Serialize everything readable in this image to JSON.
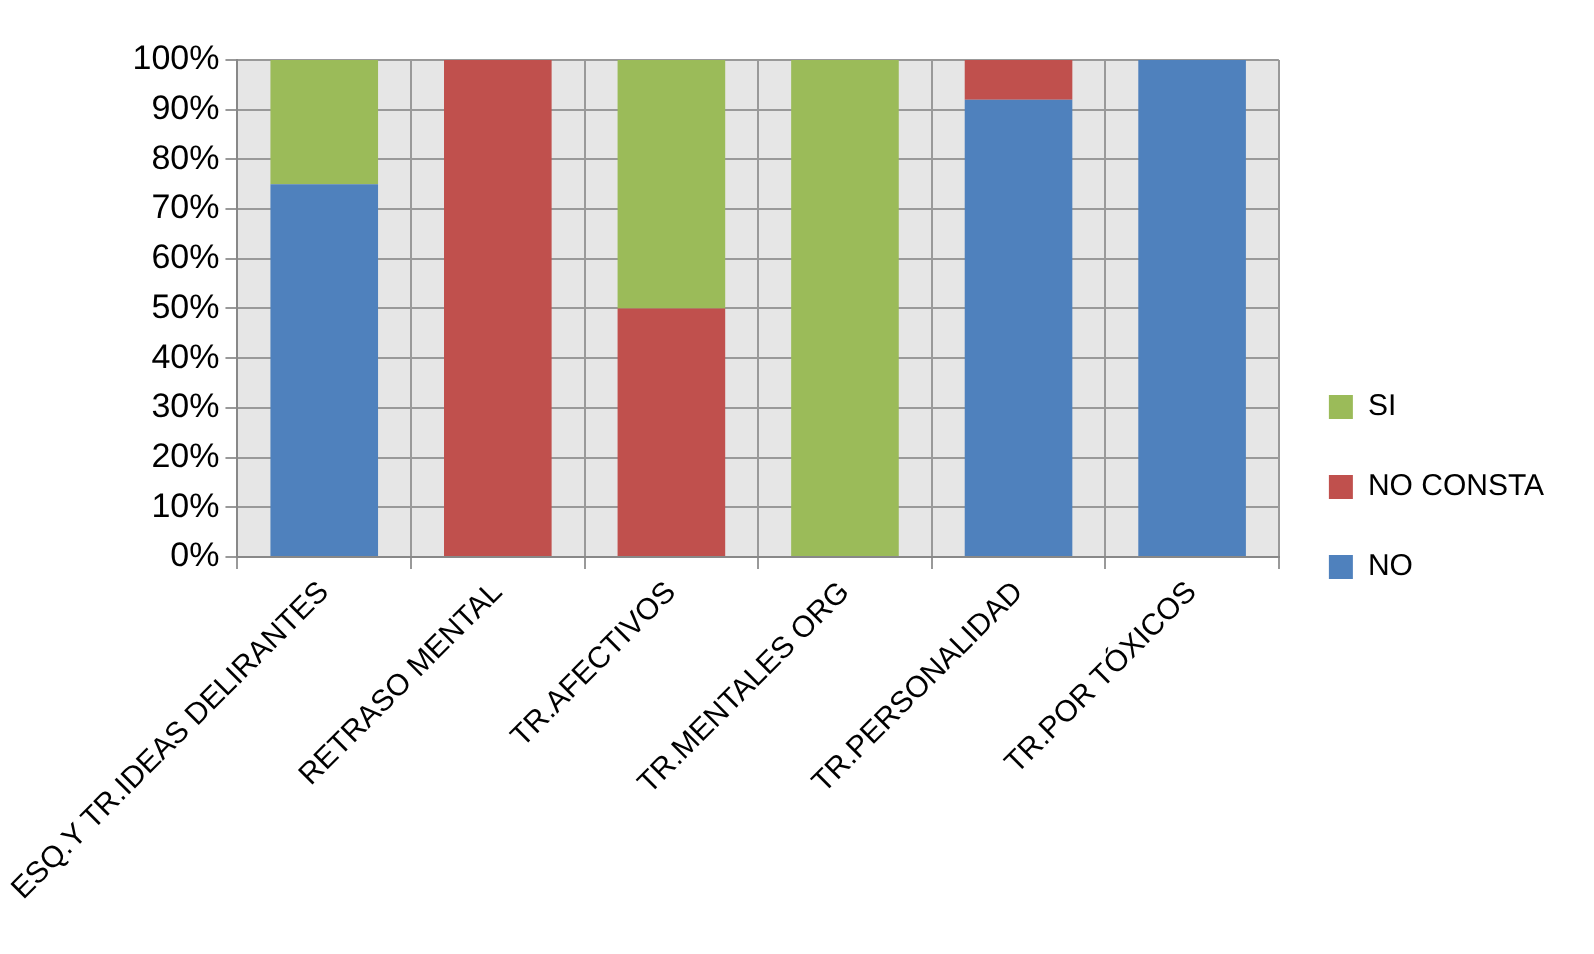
{
  "chart_data": {
    "type": "bar",
    "stacked": true,
    "categories": [
      "ESQ.Y TR.IDEAS DELIRANTES",
      "RETRASO MENTAL",
      "TR.AFECTIVOS",
      "TR.MENTALES ORG",
      "TR.PERSONALIDAD",
      "TR.POR TÓXICOS"
    ],
    "series": [
      {
        "name": "NO",
        "color": "#4f81bd",
        "values": [
          75,
          0,
          0,
          0,
          92,
          100
        ]
      },
      {
        "name": "NO CONSTA",
        "color": "#c0504d",
        "values": [
          0,
          100,
          50,
          0,
          8,
          0
        ]
      },
      {
        "name": "SI",
        "color": "#9bbb59",
        "values": [
          25,
          0,
          50,
          100,
          0,
          0
        ]
      }
    ],
    "ylim": [
      0,
      100
    ],
    "yticks": [
      {
        "value": 0,
        "label": "0%"
      },
      {
        "value": 10,
        "label": "10%"
      },
      {
        "value": 20,
        "label": "20%"
      },
      {
        "value": 30,
        "label": "30%"
      },
      {
        "value": 40,
        "label": "40%"
      },
      {
        "value": 50,
        "label": "50%"
      },
      {
        "value": 60,
        "label": "60%"
      },
      {
        "value": 70,
        "label": "70%"
      },
      {
        "value": 80,
        "label": "80%"
      },
      {
        "value": 90,
        "label": "90%"
      },
      {
        "value": 100,
        "label": "100%"
      }
    ],
    "grid": true,
    "legend": "right"
  }
}
